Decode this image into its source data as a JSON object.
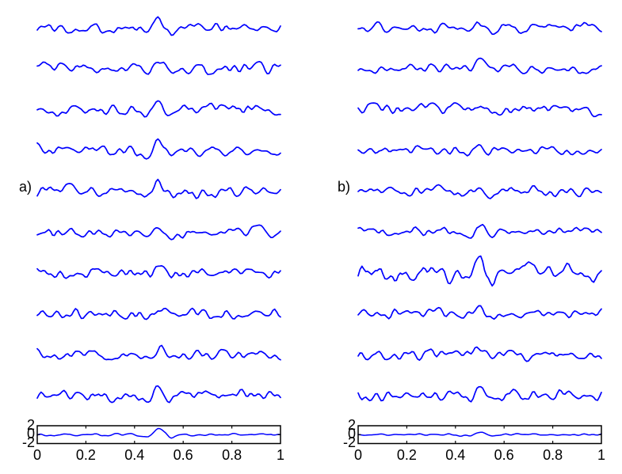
{
  "figure": {
    "background": "#ffffff",
    "trace_color": "#0000ff",
    "axis_color": "#000000",
    "text_color": "#000000"
  },
  "chart_data": [
    {
      "type": "line",
      "panel_label": "a)",
      "description": "Left column: 10 noisy single-trial traces (no axes) each containing a wavelet-like bump centered at x=0.5, with a boxed average trace at the bottom.",
      "x_range": [
        0,
        1
      ],
      "n_points": 128,
      "bump": {
        "center": 0.5,
        "width": 0.042,
        "shape": "ricker"
      },
      "traces": [
        {
          "seed": 101,
          "noise": 1.05,
          "bump": 2.2
        },
        {
          "seed": 102,
          "noise": 1.1,
          "bump": 2.0
        },
        {
          "seed": 103,
          "noise": 1.1,
          "bump": 1.6
        },
        {
          "seed": 104,
          "noise": 1.0,
          "bump": 1.5
        },
        {
          "seed": 105,
          "noise": 1.1,
          "bump": 2.0
        },
        {
          "seed": 106,
          "noise": 1.05,
          "bump": 1.8
        },
        {
          "seed": 107,
          "noise": 1.1,
          "bump": 1.9
        },
        {
          "seed": 108,
          "noise": 1.15,
          "bump": 1.7
        },
        {
          "seed": 109,
          "noise": 1.05,
          "bump": 1.6
        },
        {
          "seed": 110,
          "noise": 1.1,
          "bump": 2.1
        }
      ],
      "average": {
        "seed": 121,
        "noise": 0.25,
        "bump": 1.3
      },
      "bottom_axis": {
        "ylim": [
          -2,
          2
        ],
        "yticks": [
          2,
          0,
          -2
        ],
        "ytick_labels": [
          "2",
          "0",
          "-2"
        ],
        "xticks": [
          0,
          0.2,
          0.4,
          0.6,
          0.8,
          1
        ],
        "xtick_labels": [
          "0",
          "0.2",
          "0.4",
          "0.6",
          "0.8",
          "1"
        ],
        "grid": false,
        "box": true
      }
    },
    {
      "type": "line",
      "panel_label": "b)",
      "description": "Right column: 10 noisy single-trial traces (no axes) with a weaker bump at x=0.5 (row 7 has larger noise amplitude), with a boxed average trace at the bottom.",
      "x_range": [
        0,
        1
      ],
      "n_points": 128,
      "bump": {
        "center": 0.5,
        "width": 0.042,
        "shape": "ricker"
      },
      "traces": [
        {
          "seed": 201,
          "noise": 1.0,
          "bump": 1.6
        },
        {
          "seed": 202,
          "noise": 1.05,
          "bump": 1.8
        },
        {
          "seed": 203,
          "noise": 1.05,
          "bump": 1.3
        },
        {
          "seed": 204,
          "noise": 0.95,
          "bump": 1.2
        },
        {
          "seed": 205,
          "noise": 1.0,
          "bump": 1.5
        },
        {
          "seed": 206,
          "noise": 1.0,
          "bump": 1.4
        },
        {
          "seed": 207,
          "noise": 1.8,
          "bump": 2.2
        },
        {
          "seed": 208,
          "noise": 1.0,
          "bump": 1.2
        },
        {
          "seed": 209,
          "noise": 1.05,
          "bump": 1.5
        },
        {
          "seed": 210,
          "noise": 1.1,
          "bump": 1.6
        }
      ],
      "average": {
        "seed": 221,
        "noise": 0.2,
        "bump": 0.7
      },
      "bottom_axis": {
        "ylim": [
          -2,
          2
        ],
        "yticks": [
          2,
          0,
          -2
        ],
        "ytick_labels": [
          "2",
          "0",
          "-2"
        ],
        "xticks": [
          0,
          0.2,
          0.4,
          0.6,
          0.8,
          1
        ],
        "xtick_labels": [
          "0",
          "0.2",
          "0.4",
          "0.6",
          "0.8",
          "1"
        ],
        "grid": false,
        "box": true
      }
    }
  ]
}
